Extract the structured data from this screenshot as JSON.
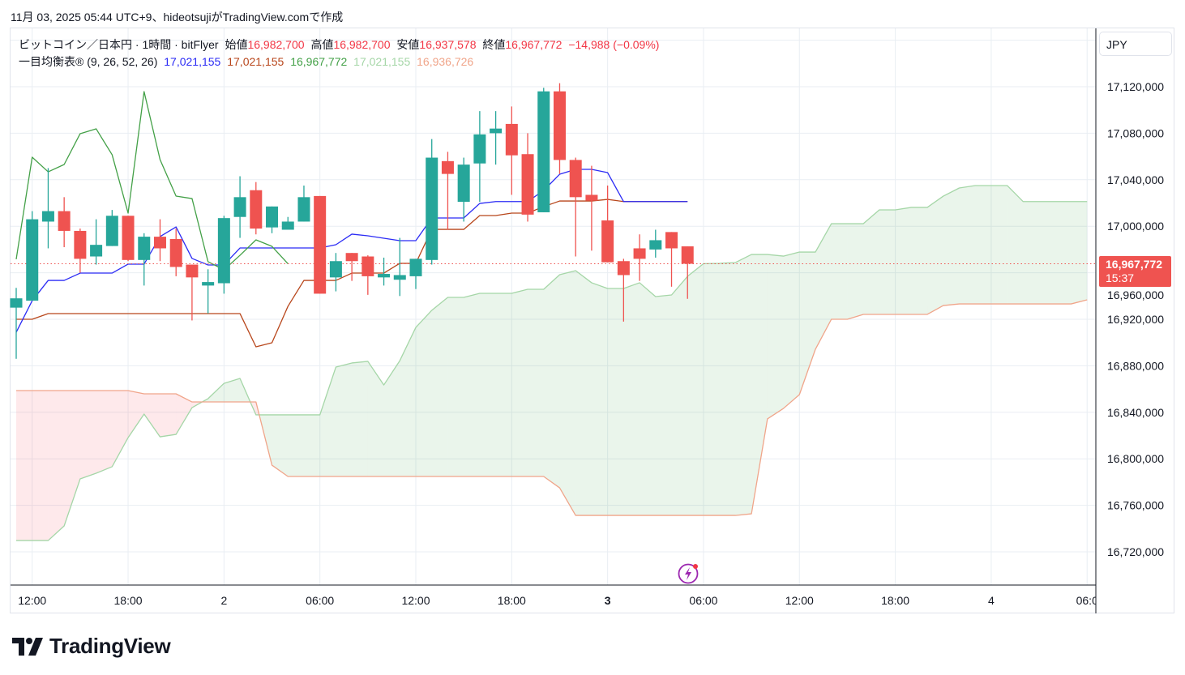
{
  "caption": "11月 03, 2025 05:44 UTC+9、hideotsujiがTradingView.comで作成",
  "legend": {
    "symbol": "ビットコイン／日本円 · 1時間 · bitFlyer",
    "open_label": "始値",
    "open": "16,982,700",
    "high_label": "高値",
    "high": "16,982,700",
    "low_label": "安値",
    "low": "16,937,578",
    "close_label": "終値",
    "close": "16,967,772",
    "change": "−14,988 (−0.09%)",
    "indicator": "一目均衡表® (9, 26, 52, 26)",
    "tenkan": "17,021,155",
    "kijun": "17,021,155",
    "chikou": "16,967,772",
    "span_a": "17,021,155",
    "span_b": "16,936,726"
  },
  "currency": "JPY",
  "price_label": {
    "price": "16,967,772",
    "countdown": "15:37"
  },
  "brand": "TradingView",
  "colors": {
    "up": "#26a69a",
    "down": "#ef5350",
    "tenkan": "#2b2bf5",
    "kijun": "#b8461b",
    "chikou": "#43a047",
    "span_a": "#a5d6a7",
    "span_b": "#f0a58a",
    "accent_red": "#f23645"
  },
  "chart_data": {
    "type": "candlestick",
    "interval": "1h",
    "ylim": [
      16700000,
      17160000
    ],
    "y_ticks": [
      16720000,
      16760000,
      16800000,
      16840000,
      16880000,
      16920000,
      16960000,
      17000000,
      17040000,
      17080000,
      17120000
    ],
    "y_tick_labels": [
      "16,720,000",
      "16,760,000",
      "16,800,000",
      "16,840,000",
      "16,880,000",
      "16,920,000",
      "16,960,000",
      "17,000,000",
      "17,040,000",
      "17,080,000",
      "17,120,000"
    ],
    "x_ticks": [
      {
        "bar": 1,
        "label": "12:00",
        "bold": false
      },
      {
        "bar": 7,
        "label": "18:00",
        "bold": false
      },
      {
        "bar": 13,
        "label": "2",
        "bold": false
      },
      {
        "bar": 19,
        "label": "06:00",
        "bold": false
      },
      {
        "bar": 25,
        "label": "12:00",
        "bold": false
      },
      {
        "bar": 31,
        "label": "18:00",
        "bold": false
      },
      {
        "bar": 37,
        "label": "3",
        "bold": true
      },
      {
        "bar": 43,
        "label": "06:00",
        "bold": false
      },
      {
        "bar": 49,
        "label": "12:00",
        "bold": false
      },
      {
        "bar": 55,
        "label": "18:00",
        "bold": false
      },
      {
        "bar": 61,
        "label": "4",
        "bold": false
      },
      {
        "bar": 67,
        "label": "06:0",
        "bold": false
      }
    ],
    "last_price": 16967772,
    "candles_ohlc_thousands": [
      [
        16930,
        16947,
        16886,
        16938
      ],
      [
        16936,
        17013,
        16936,
        17006
      ],
      [
        17004,
        17050,
        16981,
        17013
      ],
      [
        17013,
        17025,
        16982,
        16996
      ],
      [
        16996,
        16998,
        16960,
        16972
      ],
      [
        16974,
        17006,
        16967,
        16984
      ],
      [
        16983,
        17014,
        16983,
        17009
      ],
      [
        17009,
        17009,
        16970,
        16971
      ],
      [
        16971,
        16994,
        16949,
        16991
      ],
      [
        16991,
        17006,
        16970,
        16981
      ],
      [
        16989,
        16998,
        16957,
        16965
      ],
      [
        16967,
        16967,
        16919,
        16956
      ],
      [
        16949,
        16963,
        16925,
        16952
      ],
      [
        16951,
        17009,
        16942,
        17007
      ],
      [
        17008,
        17043,
        16990,
        17025
      ],
      [
        17031,
        17038,
        16993,
        16998
      ],
      [
        16999,
        17017,
        16994,
        17017
      ],
      [
        16997,
        17008,
        16997,
        17004
      ],
      [
        17004,
        17035,
        17004,
        17025
      ],
      [
        17026,
        17026,
        16942,
        16942
      ],
      [
        16956,
        16977,
        16944,
        16970
      ],
      [
        16977,
        16977,
        16953,
        16970
      ],
      [
        16974,
        16975,
        16941,
        16957
      ],
      [
        16956,
        16973,
        16949,
        16959
      ],
      [
        16954,
        16990,
        16940,
        16958
      ],
      [
        16957,
        16972,
        16946,
        16972
      ],
      [
        16971,
        17075,
        16967,
        17059
      ],
      [
        17056,
        17064,
        16997,
        17045
      ],
      [
        17021,
        17059,
        17004,
        17053
      ],
      [
        17054,
        17099,
        17021,
        17079
      ],
      [
        17080,
        17099,
        17053,
        17084
      ],
      [
        17088,
        17103,
        17027,
        17061
      ],
      [
        17062,
        17080,
        17004,
        17010
      ],
      [
        17012,
        17119,
        17012,
        17116
      ],
      [
        17116,
        17123,
        17045,
        17057
      ],
      [
        17057,
        17059,
        16974,
        17025
      ],
      [
        17027,
        17052,
        16979,
        17022
      ],
      [
        17005,
        17035,
        16969,
        16969
      ],
      [
        16970,
        16972,
        16918,
        16958
      ],
      [
        16981,
        16993,
        16953,
        16972
      ],
      [
        16980,
        16997,
        16973,
        16988
      ],
      [
        16995,
        16995,
        16948,
        16981
      ],
      [
        16982.7,
        16982.7,
        16937.578,
        16967.772
      ]
    ],
    "ichimoku_thousands": {
      "tenkan": [
        16908.8,
        16936.0,
        16953.4,
        16953.4,
        16959.7,
        16959.7,
        16959.7,
        16967.4,
        16967.4,
        16991.1,
        16999.4,
        16972.3,
        16966.7,
        16966.7,
        16981.3,
        16981.3,
        16981.3,
        16981.3,
        16981.3,
        16981.3,
        16984.1,
        16993.2,
        16991.8,
        16989.7,
        16987.6,
        16987.6,
        17007.1,
        17007.1,
        17007.1,
        17019.6,
        17021.2,
        17021.2,
        17021.2,
        17030.8,
        17044.7,
        17048.9,
        17048.9,
        17046.1,
        17021.2,
        17021.2,
        17021.2,
        17021.2,
        17021.2
      ],
      "kijun": [
        16920.0,
        16920.0,
        16924.9,
        16924.9,
        16924.9,
        16924.9,
        16924.9,
        16924.9,
        16924.9,
        16924.9,
        16924.9,
        16924.9,
        16924.9,
        16924.9,
        16924.9,
        16896.3,
        16899.8,
        16931.1,
        16953.4,
        16953.4,
        16953.4,
        16959.7,
        16959.7,
        16959.7,
        16968.1,
        16968.1,
        16997.3,
        16997.3,
        16997.3,
        17009.2,
        17009.2,
        17011.3,
        17011.3,
        17016.9,
        17021.7,
        17021.7,
        17021.7,
        17023.1,
        17021.2,
        17021.2,
        17021.2,
        17021.2,
        17021.2
      ],
      "chikou": [
        16971.6,
        17059.4,
        17046.8,
        17053.1,
        17079.6,
        17083.8,
        17061.5,
        17011.3,
        17115.8,
        17057.3,
        17025.9,
        17023.8,
        16969.5,
        16962.5,
        16975.0,
        16988.3,
        16982.7,
        16967.8
      ],
      "span_a": [
        16729.7,
        16729.7,
        16729.7,
        16742.3,
        16782.7,
        16787.6,
        16793.2,
        16818.2,
        16838.5,
        16818.9,
        16821.0,
        16844.0,
        16851.7,
        16864.9,
        16869.1,
        16837.8,
        16837.8,
        16837.8,
        16837.8,
        16837.8,
        16878.9,
        16882.4,
        16883.8,
        16863.5,
        16884.4,
        16913.0,
        16927.7,
        16938.8,
        16938.8,
        16942.3,
        16942.3,
        16942.3,
        16945.8,
        16945.8,
        16958.3,
        16961.8,
        16951.4,
        16946.5,
        16946.5,
        16951.4,
        16939.5,
        16940.9,
        16956.9,
        16967.8,
        16968.1,
        16968.8,
        16975.7,
        16975.7,
        16974.3,
        16977.8,
        16977.8,
        17002.2,
        17002.2,
        17002.2,
        17014.1,
        17014.1,
        17016.2,
        17016.2,
        17025.9,
        17032.9,
        17035.0,
        17035.0,
        17035.0,
        17021.2,
        17021.2,
        17021.2,
        17021.2,
        17021.2
      ],
      "span_b": [
        16858.7,
        16858.7,
        16858.7,
        16858.7,
        16858.7,
        16858.7,
        16858.7,
        16858.7,
        16855.9,
        16855.9,
        16855.9,
        16848.9,
        16848.9,
        16848.9,
        16848.9,
        16848.9,
        16794.5,
        16784.8,
        16784.8,
        16784.8,
        16784.8,
        16784.8,
        16784.8,
        16784.8,
        16784.8,
        16784.8,
        16784.8,
        16784.8,
        16784.8,
        16784.8,
        16784.8,
        16784.8,
        16784.8,
        16784.8,
        16775.0,
        16751.3,
        16751.3,
        16751.3,
        16751.3,
        16751.3,
        16751.3,
        16751.3,
        16751.3,
        16751.3,
        16751.3,
        16751.3,
        16752.7,
        16834.3,
        16843.3,
        16855.2,
        16894.2,
        16920.0,
        16920.0,
        16924.2,
        16924.2,
        16924.2,
        16924.2,
        16924.2,
        16931.8,
        16933.2,
        16933.2,
        16933.2,
        16933.2,
        16933.2,
        16933.2,
        16933.2,
        16933.2,
        16936.7
      ]
    }
  }
}
